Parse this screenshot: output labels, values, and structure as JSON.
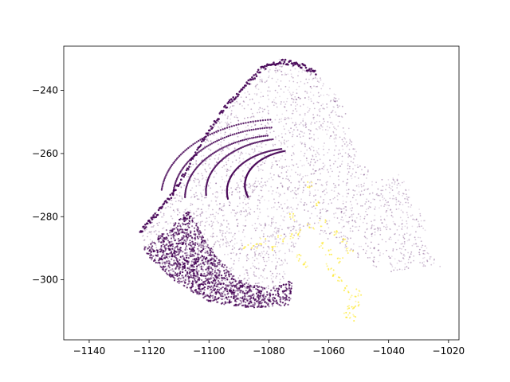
{
  "chart_data": {
    "type": "scatter",
    "title": "",
    "xlabel": "",
    "ylabel": "",
    "xlim": [
      -1148.5,
      -1016.5
    ],
    "ylim": [
      -319,
      -226
    ],
    "xticks": [
      -1140,
      -1120,
      -1100,
      -1080,
      -1060,
      -1040,
      -1020
    ],
    "yticks": [
      -240,
      -260,
      -280,
      -300
    ],
    "xtick_labels": [
      "−1140",
      "−1120",
      "−1100",
      "−1080",
      "−1060",
      "−1040",
      "−1020"
    ],
    "ytick_labels": [
      "−240",
      "−260",
      "−280",
      "−300"
    ],
    "grid": false,
    "colormap": "viridis",
    "series": [
      {
        "color": "#440154",
        "outline": [
          [
            -1123,
            -284
          ],
          [
            -1118,
            -279
          ],
          [
            -1112,
            -272
          ],
          [
            -1106,
            -262
          ],
          [
            -1100,
            -252
          ],
          [
            -1094,
            -244
          ],
          [
            -1088,
            -238
          ],
          [
            -1082,
            -232
          ],
          [
            -1076,
            -230
          ],
          [
            -1070,
            -231
          ],
          [
            -1064,
            -234
          ],
          [
            -1060,
            -238
          ],
          [
            -1056,
            -243
          ],
          [
            -1054,
            -248
          ],
          [
            -1052,
            -255
          ],
          [
            -1050,
            -262
          ],
          [
            -1044,
            -268
          ],
          [
            -1038,
            -265
          ],
          [
            -1034,
            -270
          ],
          [
            -1030,
            -277
          ],
          [
            -1026,
            -284
          ],
          [
            -1030,
            -285
          ],
          [
            -1026,
            -292
          ],
          [
            -1022,
            -296
          ],
          [
            -1030,
            -296
          ],
          [
            -1040,
            -298
          ],
          [
            -1048,
            -294
          ],
          [
            -1056,
            -290
          ],
          [
            -1062,
            -286
          ],
          [
            -1068,
            -283
          ],
          [
            -1072,
            -293
          ],
          [
            -1075,
            -300
          ],
          [
            -1080,
            -306
          ],
          [
            -1088,
            -309
          ],
          [
            -1096,
            -307
          ],
          [
            -1104,
            -304
          ],
          [
            -1112,
            -299
          ],
          [
            -1118,
            -294
          ],
          [
            -1122,
            -290
          ]
        ],
        "dense_band": [
          [
            -1122,
            -290
          ],
          [
            -1114,
            -284
          ],
          [
            -1107,
            -278
          ],
          [
            -1104,
            -282
          ],
          [
            -1098,
            -292
          ],
          [
            -1090,
            -300
          ],
          [
            -1080,
            -303
          ],
          [
            -1072,
            -300
          ],
          [
            -1073,
            -308
          ],
          [
            -1086,
            -309
          ],
          [
            -1100,
            -307
          ],
          [
            -1112,
            -300
          ],
          [
            -1119,
            -294
          ]
        ],
        "arcs": [
          {
            "cx": -1076,
            "cy": -274,
            "r": 40,
            "from": 95,
            "to": 175
          },
          {
            "cx": -1076,
            "cy": -274,
            "r": 36,
            "from": 95,
            "to": 178
          },
          {
            "cx": -1076,
            "cy": -274,
            "r": 32,
            "from": 98,
            "to": 180
          },
          {
            "cx": -1074,
            "cy": -272,
            "r": 27,
            "from": 100,
            "to": 185
          },
          {
            "cx": -1072,
            "cy": -272,
            "r": 22,
            "from": 100,
            "to": 190
          },
          {
            "cx": -1070,
            "cy": -270,
            "r": 18,
            "from": 105,
            "to": 200
          }
        ]
      },
      {
        "color": "#fde725",
        "points": [
          [
            -1088,
            -290
          ],
          [
            -1085,
            -289
          ],
          [
            -1082,
            -288
          ],
          [
            -1079,
            -290
          ],
          [
            -1076,
            -287
          ],
          [
            -1073,
            -286
          ],
          [
            -1070,
            -285
          ],
          [
            -1066,
            -283
          ],
          [
            -1063,
            -289
          ],
          [
            -1060,
            -296
          ],
          [
            -1058,
            -298
          ],
          [
            -1056,
            -300
          ],
          [
            -1054,
            -303
          ],
          [
            -1052,
            -306
          ],
          [
            -1053,
            -309
          ],
          [
            -1054,
            -311
          ],
          [
            -1052,
            -312
          ],
          [
            -1051,
            -308
          ],
          [
            -1050,
            -304
          ],
          [
            -1056,
            -294
          ],
          [
            -1060,
            -291
          ],
          [
            -1062,
            -282
          ],
          [
            -1064,
            -276
          ],
          [
            -1066,
            -270
          ],
          [
            -1070,
            -293
          ],
          [
            -1068,
            -295
          ],
          [
            -1058,
            -285
          ],
          [
            -1055,
            -288
          ],
          [
            -1053,
            -291
          ],
          [
            -1072,
            -280
          ]
        ]
      }
    ]
  }
}
